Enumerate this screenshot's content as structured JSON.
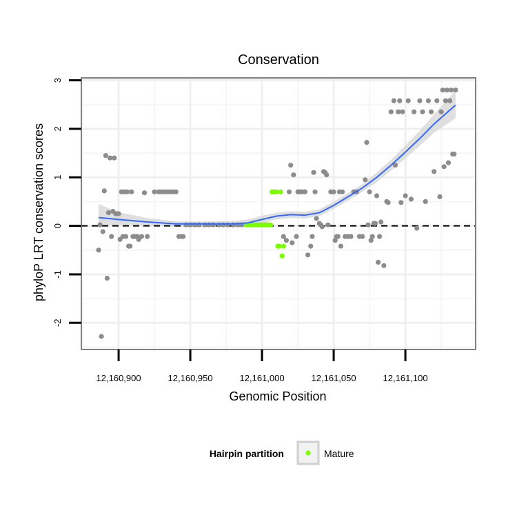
{
  "chart_data": {
    "type": "scatter",
    "title": "Conservation",
    "xlabel": "Genomic Position",
    "ylabel": "phyloP LRT conservation scores",
    "xlim": [
      12160874,
      12161149
    ],
    "ylim": [
      -2.55,
      3.05
    ],
    "x_ticks": [
      12160900,
      12160950,
      12161000,
      12161050,
      12161100
    ],
    "x_tick_labels": [
      "12,160,900",
      "12,160,950",
      "12,161,000",
      "12,161,050",
      "12,161,100"
    ],
    "y_ticks": [
      -2,
      -1,
      0,
      1,
      2,
      3
    ],
    "y_tick_labels": [
      "-2",
      "-1",
      "0",
      "1",
      "2",
      "3"
    ],
    "grid": true,
    "reference_line": {
      "y": 0,
      "style": "dashed"
    },
    "legend": {
      "title": "Hairpin partition",
      "position": "bottom",
      "entries": [
        "Mature"
      ]
    },
    "colors": {
      "points": "#8c8c8c",
      "mature": "#7cfc00",
      "smooth": "#3366ff",
      "band": "#d9d9d9"
    },
    "series": [
      {
        "name": "",
        "color": "#8c8c8c",
        "x": [
          12160886,
          12160887,
          12160888,
          12160889,
          12160890,
          12160891,
          12160892,
          12160893,
          12160894,
          12160895,
          12160896,
          12160897,
          12160898,
          12160899,
          12160900,
          12160901,
          12160902,
          12160903,
          12160904,
          12160905,
          12160906,
          12160907,
          12160908,
          12160909,
          12160910,
          12160911,
          12160912,
          12160913,
          12160914,
          12160916,
          12160918,
          12160920,
          12160925,
          12160928,
          12160930,
          12160932,
          12160934,
          12160936,
          12160938,
          12160940,
          12160942,
          12160944,
          12160945,
          12160947,
          12160950,
          12160953,
          12160956,
          12160960,
          12160963,
          12160966,
          12160970,
          12160973,
          12160976,
          12160980,
          12160983,
          12160986,
          12161015,
          12161017,
          12161019,
          12161020,
          12161021,
          12161022,
          12161024,
          12161025,
          12161026,
          12161027,
          12161028,
          12161030,
          12161032,
          12161034,
          12161035,
          12161036,
          12161037,
          12161038,
          12161040,
          12161041,
          12161042,
          12161043,
          12161044,
          12161045,
          12161046,
          12161048,
          12161050,
          12161051,
          12161052,
          12161053,
          12161054,
          12161055,
          12161056,
          12161058,
          12161060,
          12161062,
          12161064,
          12161066,
          12161068,
          12161070,
          12161072,
          12161073,
          12161074,
          12161075,
          12161076,
          12161077,
          12161078,
          12161079,
          12161080,
          12161081,
          12161082,
          12161083,
          12161085,
          12161087,
          12161088,
          12161090,
          12161092,
          12161093,
          12161095,
          12161096,
          12161097,
          12161098,
          12161100,
          12161102,
          12161104,
          12161106,
          12161108,
          12161110,
          12161112,
          12161114,
          12161116,
          12161118,
          12161120,
          12161122,
          12161124,
          12161125,
          12161126,
          12161127,
          12161128,
          12161129,
          12161130,
          12161131,
          12161132,
          12161133,
          12161134,
          12161135
        ],
        "y": [
          -0.5,
          0.02,
          -2.28,
          -0.12,
          0.72,
          1.45,
          -1.08,
          0.27,
          1.4,
          -0.22,
          0.3,
          1.4,
          0.25,
          0.25,
          0.25,
          -0.28,
          0.7,
          -0.22,
          0.7,
          -0.22,
          0.7,
          -0.42,
          -0.42,
          0.7,
          -0.22,
          -0.22,
          -0.22,
          -0.22,
          -0.28,
          -0.22,
          0.68,
          -0.22,
          0.7,
          0.7,
          0.7,
          0.7,
          0.7,
          0.7,
          0.7,
          0.7,
          -0.22,
          -0.22,
          -0.22,
          0.02,
          0.02,
          0.02,
          0.02,
          0.02,
          0.02,
          0.02,
          0.02,
          0.02,
          0.02,
          0.02,
          0.02,
          0.02,
          -0.22,
          -0.3,
          0.7,
          1.25,
          -0.35,
          1.05,
          -0.22,
          0.7,
          0.7,
          0.7,
          0.7,
          0.7,
          -0.6,
          -0.42,
          -0.22,
          1.1,
          0.7,
          0.15,
          0.05,
          0.02,
          -0.02,
          1.12,
          1.1,
          1.05,
          0.02,
          0.7,
          0.7,
          -0.3,
          -0.22,
          -0.22,
          0.7,
          -0.42,
          0.7,
          -0.22,
          -0.22,
          -0.22,
          0.7,
          0.7,
          -0.22,
          -0.22,
          0.95,
          1.72,
          0.02,
          0.7,
          -0.3,
          -0.22,
          0.05,
          0.05,
          0.62,
          -0.75,
          -0.22,
          0.08,
          -0.82,
          0.5,
          0.48,
          2.35,
          2.58,
          1.25,
          2.35,
          2.58,
          0.48,
          2.35,
          0.62,
          2.58,
          0.55,
          2.35,
          -0.05,
          2.58,
          2.35,
          0.5,
          2.58,
          2.35,
          1.12,
          2.58,
          0.6,
          2.35,
          2.8,
          1.22,
          2.58,
          2.8,
          1.3,
          2.58,
          2.8,
          1.48,
          1.48,
          2.8
        ]
      },
      {
        "name": "Mature",
        "color": "#7cfc00",
        "x": [
          12160989,
          12160990,
          12160991,
          12160992,
          12160993,
          12160994,
          12160995,
          12160996,
          12160997,
          12160998,
          12160999,
          12161000,
          12161001,
          12161002,
          12161003,
          12161004,
          12161005,
          12161006,
          12161007,
          12161008,
          12161009,
          12161010,
          12161011,
          12161012,
          12161013,
          12161014,
          12161015
        ],
        "y": [
          0.02,
          0.02,
          0.02,
          0.02,
          0.02,
          0.02,
          0.02,
          0.02,
          0.02,
          0.02,
          0.02,
          0.02,
          0.02,
          0.02,
          0.02,
          0.02,
          0.02,
          0.02,
          0.7,
          0.7,
          0.7,
          0.7,
          -0.42,
          -0.42,
          0.7,
          -0.62,
          -0.42
        ]
      }
    ],
    "smooth": {
      "name": "",
      "color": "#3366ff",
      "x": [
        12160886,
        12160900,
        12160920,
        12160940,
        12160960,
        12160980,
        12160990,
        12161000,
        12161010,
        12161020,
        12161030,
        12161040,
        12161050,
        12161060,
        12161070,
        12161080,
        12161090,
        12161100,
        12161110,
        12161120,
        12161135
      ],
      "y": [
        0.17,
        0.13,
        0.08,
        0.04,
        0.04,
        0.04,
        0.06,
        0.13,
        0.2,
        0.23,
        0.22,
        0.27,
        0.42,
        0.6,
        0.78,
        1.0,
        1.25,
        1.52,
        1.8,
        2.1,
        2.49
      ],
      "lower": [
        0.0,
        0.02,
        0.01,
        -0.02,
        -0.02,
        -0.03,
        -0.01,
        0.05,
        0.13,
        0.16,
        0.15,
        0.2,
        0.35,
        0.52,
        0.7,
        0.9,
        1.14,
        1.39,
        1.65,
        1.92,
        2.22
      ],
      "upper": [
        0.45,
        0.28,
        0.16,
        0.09,
        0.09,
        0.1,
        0.13,
        0.21,
        0.27,
        0.3,
        0.29,
        0.34,
        0.5,
        0.68,
        0.86,
        1.1,
        1.36,
        1.66,
        1.96,
        2.3,
        2.8
      ]
    }
  }
}
